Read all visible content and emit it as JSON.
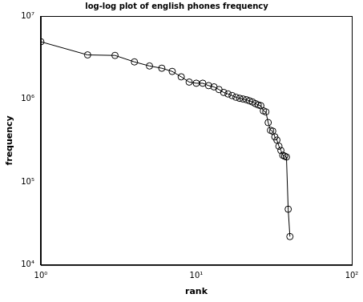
{
  "chart_data": {
    "type": "line",
    "title": "log-log plot of english phones frequency",
    "x_label": "rank",
    "y_label": "frequency",
    "x": [
      1,
      2,
      3,
      4,
      5,
      6,
      7,
      8,
      9,
      10,
      11,
      12,
      13,
      14,
      15,
      16,
      17,
      18,
      19,
      20,
      21,
      22,
      23,
      24,
      25,
      26,
      27,
      28,
      29,
      30,
      31,
      32,
      33,
      34,
      35,
      36,
      37,
      38,
      39,
      40
    ],
    "values": [
      4900000,
      3400000,
      3350000,
      2800000,
      2500000,
      2350000,
      2150000,
      1850000,
      1600000,
      1550000,
      1550000,
      1450000,
      1400000,
      1300000,
      1200000,
      1150000,
      1100000,
      1050000,
      1020000,
      1000000,
      980000,
      950000,
      920000,
      880000,
      850000,
      830000,
      720000,
      700000,
      520000,
      420000,
      410000,
      350000,
      320000,
      270000,
      240000,
      210000,
      205000,
      200000,
      47000,
      22000
    ],
    "color": "#000000",
    "marker": "circle",
    "line_style": "solid",
    "log": true,
    "grid": false,
    "xlim": [
      1,
      100
    ],
    "xticks": [
      {
        "value": 1,
        "label": "10⁰"
      },
      {
        "value": 10,
        "label": "10¹"
      },
      {
        "value": 100,
        "label": "10²"
      }
    ],
    "ylim": [
      10000,
      10000000
    ],
    "yticks": [
      {
        "value": 10000,
        "label": "10⁴"
      },
      {
        "value": 100000,
        "label": "10⁵"
      },
      {
        "value": 1000000,
        "label": "10⁶"
      },
      {
        "value": 10000000,
        "label": "10⁷"
      }
    ]
  }
}
